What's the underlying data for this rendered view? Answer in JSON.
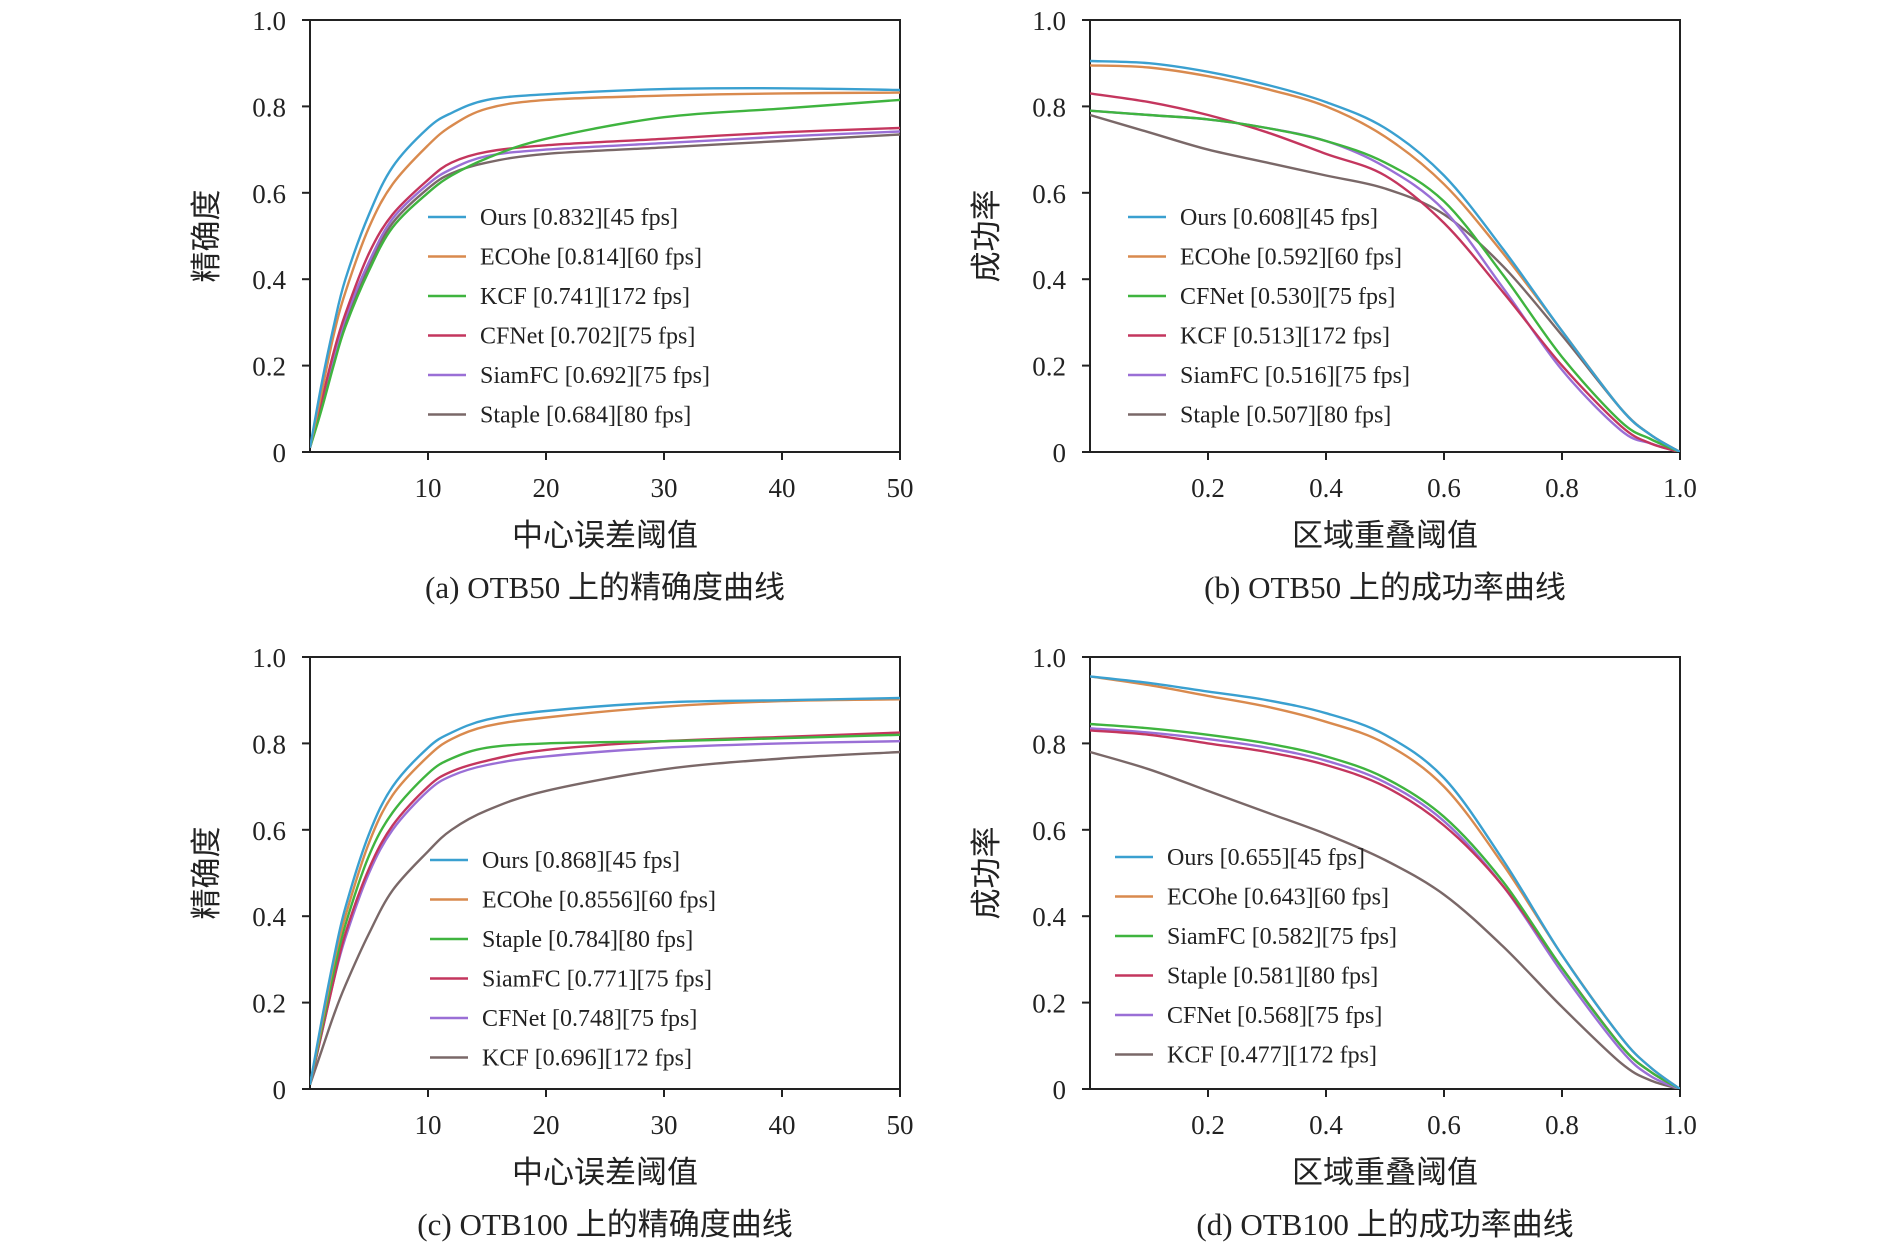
{
  "chart_data": [
    {
      "id": "a",
      "type": "line",
      "caption": "(a) OTB50 上的精确度曲线",
      "xlabel": "中心误差阈值",
      "ylabel": "精确度",
      "xlim": [
        0,
        50
      ],
      "ylim": [
        0,
        1
      ],
      "xticks": [
        10,
        20,
        30,
        40,
        50
      ],
      "xtick_labels": [
        "10",
        "20",
        "30",
        "40",
        "50"
      ],
      "yticks": [
        0,
        0.2,
        0.4,
        0.6,
        0.8,
        1.0
      ],
      "ytick_labels": [
        "0",
        "0.2",
        "0.4",
        "0.6",
        "0.8",
        "1.0"
      ],
      "x": [
        0,
        1,
        2,
        3,
        5,
        7,
        10,
        12,
        15,
        20,
        30,
        40,
        50
      ],
      "series": [
        {
          "name": "Ours [0.832][45 fps]",
          "color": "#3aa0d0",
          "values": [
            0.01,
            0.16,
            0.29,
            0.4,
            0.55,
            0.66,
            0.75,
            0.785,
            0.815,
            0.828,
            0.84,
            0.842,
            0.838
          ]
        },
        {
          "name": "ECOhe [0.814][60 fps]",
          "color": "#d98a4e",
          "values": [
            0.01,
            0.14,
            0.27,
            0.37,
            0.52,
            0.62,
            0.71,
            0.755,
            0.795,
            0.815,
            0.825,
            0.83,
            0.832
          ]
        },
        {
          "name": "KCF [0.741][172 fps]",
          "color": "#3fb43f",
          "values": [
            0.01,
            0.1,
            0.2,
            0.29,
            0.42,
            0.52,
            0.6,
            0.64,
            0.68,
            0.725,
            0.775,
            0.795,
            0.815
          ]
        },
        {
          "name": "CFNet [0.702][75 fps]",
          "color": "#c4365e",
          "values": [
            0.01,
            0.12,
            0.23,
            0.32,
            0.46,
            0.55,
            0.63,
            0.67,
            0.695,
            0.71,
            0.725,
            0.74,
            0.75
          ]
        },
        {
          "name": "SiamFC [0.692][75 fps]",
          "color": "#9a6fd6",
          "values": [
            0.01,
            0.12,
            0.22,
            0.31,
            0.44,
            0.54,
            0.62,
            0.655,
            0.685,
            0.7,
            0.715,
            0.73,
            0.742
          ]
        },
        {
          "name": "Staple [0.684][80 fps]",
          "color": "#7a6868",
          "values": [
            0.01,
            0.11,
            0.21,
            0.3,
            0.43,
            0.53,
            0.61,
            0.645,
            0.67,
            0.69,
            0.705,
            0.72,
            0.735
          ]
        }
      ]
    },
    {
      "id": "b",
      "type": "line",
      "caption": "(b) OTB50 上的成功率曲线",
      "xlabel": "区域重叠阈值",
      "ylabel": "成功率",
      "xlim": [
        0,
        1
      ],
      "ylim": [
        0,
        1
      ],
      "xticks": [
        0.2,
        0.4,
        0.6,
        0.8,
        1.0
      ],
      "xtick_labels": [
        "0.2",
        "0.4",
        "0.6",
        "0.8",
        "1.0"
      ],
      "yticks": [
        0,
        0.2,
        0.4,
        0.6,
        0.8,
        1.0
      ],
      "ytick_labels": [
        "0",
        "0.2",
        "0.4",
        "0.6",
        "0.8",
        "1.0"
      ],
      "x": [
        0,
        0.1,
        0.2,
        0.3,
        0.4,
        0.5,
        0.6,
        0.7,
        0.8,
        0.9,
        0.95,
        1.0
      ],
      "series": [
        {
          "name": "Ours [0.608][45 fps]",
          "color": "#3aa0d0",
          "values": [
            0.905,
            0.9,
            0.88,
            0.85,
            0.81,
            0.75,
            0.64,
            0.47,
            0.28,
            0.1,
            0.04,
            0.0
          ]
        },
        {
          "name": "ECOhe [0.592][60 fps]",
          "color": "#d98a4e",
          "values": [
            0.895,
            0.89,
            0.87,
            0.84,
            0.8,
            0.73,
            0.62,
            0.46,
            0.28,
            0.1,
            0.04,
            0.0
          ]
        },
        {
          "name": "CFNet [0.530][75 fps]",
          "color": "#3fb43f",
          "values": [
            0.79,
            0.78,
            0.77,
            0.75,
            0.72,
            0.67,
            0.58,
            0.41,
            0.22,
            0.07,
            0.03,
            0.0
          ]
        },
        {
          "name": "KCF [0.513][172 fps]",
          "color": "#c4365e",
          "values": [
            0.83,
            0.81,
            0.78,
            0.74,
            0.69,
            0.64,
            0.53,
            0.37,
            0.2,
            0.06,
            0.02,
            0.0
          ]
        },
        {
          "name": "SiamFC [0.516][75 fps]",
          "color": "#9a6fd6",
          "values": [
            0.79,
            0.78,
            0.77,
            0.75,
            0.72,
            0.66,
            0.56,
            0.38,
            0.19,
            0.05,
            0.02,
            0.0
          ]
        },
        {
          "name": "Staple [0.507][80 fps]",
          "color": "#7a6868",
          "values": [
            0.78,
            0.74,
            0.7,
            0.67,
            0.64,
            0.61,
            0.55,
            0.43,
            0.27,
            0.1,
            0.04,
            0.0
          ]
        }
      ]
    },
    {
      "id": "c",
      "type": "line",
      "caption": "(c) OTB100 上的精确度曲线",
      "xlabel": "中心误差阈值",
      "ylabel": "精确度",
      "xlim": [
        0,
        50
      ],
      "ylim": [
        0,
        1
      ],
      "xticks": [
        10,
        20,
        30,
        40,
        50
      ],
      "xtick_labels": [
        "10",
        "20",
        "30",
        "40",
        "50"
      ],
      "yticks": [
        0,
        0.2,
        0.4,
        0.6,
        0.8,
        1.0
      ],
      "ytick_labels": [
        "0",
        "0.2",
        "0.4",
        "0.6",
        "0.8",
        "1.0"
      ],
      "x": [
        0,
        1,
        2,
        3,
        5,
        7,
        10,
        12,
        15,
        20,
        30,
        40,
        50
      ],
      "series": [
        {
          "name": "Ours [0.868][45 fps]",
          "color": "#3aa0d0",
          "values": [
            0.01,
            0.16,
            0.3,
            0.42,
            0.59,
            0.7,
            0.79,
            0.825,
            0.855,
            0.875,
            0.895,
            0.9,
            0.905
          ]
        },
        {
          "name": "ECOhe [0.8556][60 fps]",
          "color": "#d98a4e",
          "values": [
            0.01,
            0.15,
            0.29,
            0.4,
            0.57,
            0.68,
            0.77,
            0.81,
            0.84,
            0.86,
            0.885,
            0.898,
            0.902
          ]
        },
        {
          "name": "Staple [0.784][80 fps]",
          "color": "#3fb43f",
          "values": [
            0.01,
            0.14,
            0.27,
            0.38,
            0.54,
            0.64,
            0.73,
            0.765,
            0.79,
            0.8,
            0.805,
            0.812,
            0.82
          ]
        },
        {
          "name": "SiamFC [0.771][75 fps]",
          "color": "#c4365e",
          "values": [
            0.01,
            0.13,
            0.25,
            0.36,
            0.51,
            0.61,
            0.7,
            0.735,
            0.76,
            0.785,
            0.805,
            0.815,
            0.825
          ]
        },
        {
          "name": "CFNet [0.748][75 fps]",
          "color": "#9a6fd6",
          "values": [
            0.01,
            0.13,
            0.25,
            0.35,
            0.5,
            0.6,
            0.69,
            0.725,
            0.75,
            0.77,
            0.79,
            0.8,
            0.805
          ]
        },
        {
          "name": "KCF [0.696][172 fps]",
          "color": "#7a6868",
          "values": [
            0.01,
            0.09,
            0.17,
            0.24,
            0.36,
            0.46,
            0.55,
            0.6,
            0.645,
            0.69,
            0.74,
            0.765,
            0.78
          ]
        }
      ]
    },
    {
      "id": "d",
      "type": "line",
      "caption": "(d) OTB100 上的成功率曲线",
      "xlabel": "区域重叠阈值",
      "ylabel": "成功率",
      "xlim": [
        0,
        1
      ],
      "ylim": [
        0,
        1
      ],
      "xticks": [
        0.2,
        0.4,
        0.6,
        0.8,
        1.0
      ],
      "xtick_labels": [
        "0.2",
        "0.4",
        "0.6",
        "0.8",
        "1.0"
      ],
      "yticks": [
        0,
        0.2,
        0.4,
        0.6,
        0.8,
        1.0
      ],
      "ytick_labels": [
        "0",
        "0.2",
        "0.4",
        "0.6",
        "0.8",
        "1.0"
      ],
      "x": [
        0,
        0.1,
        0.2,
        0.3,
        0.4,
        0.5,
        0.6,
        0.7,
        0.8,
        0.9,
        0.95,
        1.0
      ],
      "series": [
        {
          "name": "Ours [0.655][45 fps]",
          "color": "#3aa0d0",
          "values": [
            0.955,
            0.94,
            0.92,
            0.9,
            0.87,
            0.82,
            0.72,
            0.53,
            0.31,
            0.12,
            0.05,
            0.0
          ]
        },
        {
          "name": "ECOhe [0.643][60 fps]",
          "color": "#d98a4e",
          "values": [
            0.955,
            0.935,
            0.91,
            0.885,
            0.85,
            0.8,
            0.7,
            0.52,
            0.31,
            0.12,
            0.05,
            0.0
          ]
        },
        {
          "name": "SiamFC [0.582][75 fps]",
          "color": "#3fb43f",
          "values": [
            0.845,
            0.835,
            0.82,
            0.8,
            0.77,
            0.72,
            0.63,
            0.48,
            0.28,
            0.1,
            0.04,
            0.0
          ]
        },
        {
          "name": "Staple [0.581][80 fps]",
          "color": "#c4365e",
          "values": [
            0.83,
            0.82,
            0.8,
            0.78,
            0.75,
            0.7,
            0.61,
            0.47,
            0.28,
            0.1,
            0.04,
            0.0
          ]
        },
        {
          "name": "CFNet [0.568][75 fps]",
          "color": "#9a6fd6",
          "values": [
            0.835,
            0.825,
            0.81,
            0.79,
            0.76,
            0.71,
            0.62,
            0.47,
            0.27,
            0.09,
            0.03,
            0.0
          ]
        },
        {
          "name": "KCF [0.477][172 fps]",
          "color": "#7a6868",
          "values": [
            0.78,
            0.74,
            0.69,
            0.64,
            0.59,
            0.53,
            0.45,
            0.33,
            0.19,
            0.06,
            0.02,
            0.0
          ]
        }
      ]
    }
  ]
}
